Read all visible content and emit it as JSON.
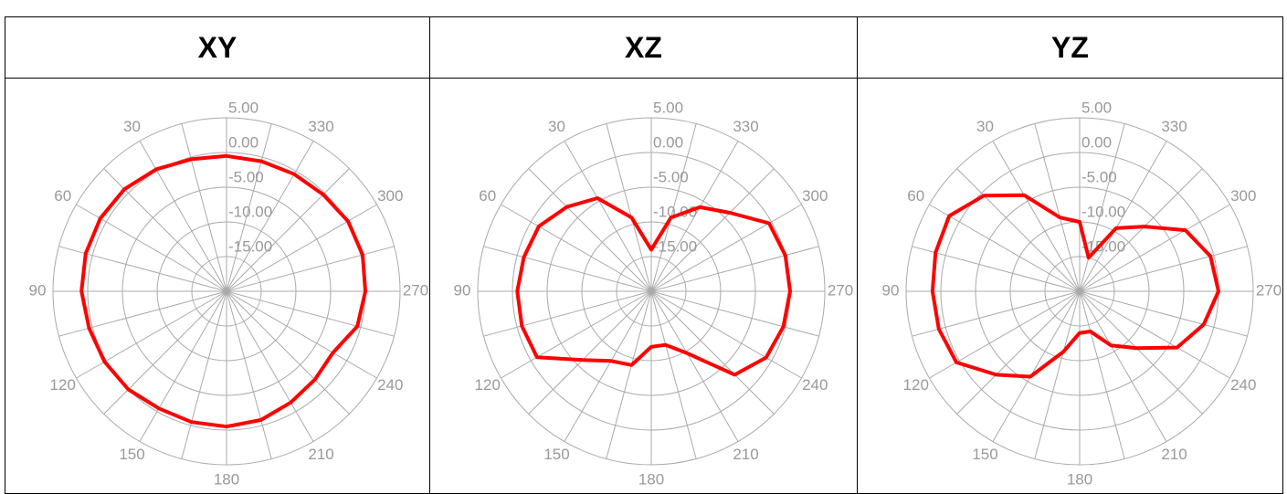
{
  "chart_data": [
    {
      "type": "polar",
      "title": "XY",
      "color": "#ff0000",
      "theta": [
        0,
        15,
        30,
        45,
        60,
        75,
        90,
        105,
        120,
        135,
        150,
        165,
        180,
        195,
        210,
        225,
        240,
        255,
        270,
        285,
        300,
        315,
        330,
        345
      ],
      "values": [
        -0.5,
        -0.3,
        0.3,
        0.8,
        1.0,
        1.0,
        0.9,
        0.5,
        0.3,
        0,
        -0.5,
        -0.5,
        -0.5,
        -0.8,
        -1.5,
        -2.0,
        -2.3,
        -0.5,
        0,
        0.3,
        0.2,
        -0.3,
        -0.5,
        -0.6
      ],
      "rlim": [
        -20,
        5
      ],
      "rticks": [
        {
          "value": 5,
          "label": "5.00"
        },
        {
          "value": 0,
          "label": "0.00"
        },
        {
          "value": -5,
          "label": "-5.00"
        },
        {
          "value": -10,
          "label": "-10.00"
        },
        {
          "value": -15,
          "label": "-15.00"
        }
      ],
      "thetaticks": [
        {
          "value": 0,
          "label": null
        },
        {
          "value": 15,
          "label": null
        },
        30,
        {
          "value": 45,
          "label": null
        },
        60,
        {
          "value": 75,
          "label": null
        },
        90,
        {
          "value": 105,
          "label": null
        },
        120,
        {
          "value": 135,
          "label": null
        },
        150,
        {
          "value": 165,
          "label": null
        },
        180,
        {
          "value": 195,
          "label": null
        },
        210,
        {
          "value": 225,
          "label": null
        },
        240,
        {
          "value": 255,
          "label": null
        },
        270,
        {
          "value": 285,
          "label": null
        },
        300,
        {
          "value": 315,
          "label": null
        },
        330,
        {
          "value": 345,
          "label": null
        }
      ]
    },
    {
      "type": "polar",
      "title": "XZ",
      "color": "#ff0000",
      "theta": [
        0,
        15,
        30,
        45,
        60,
        75,
        90,
        105,
        120,
        135,
        150,
        165,
        180,
        195,
        210,
        225,
        240,
        255,
        270,
        285,
        300,
        315,
        330,
        345
      ],
      "values": [
        -14,
        -9,
        -4.5,
        -2.8,
        -1.3,
        -1,
        -0.7,
        -0.7,
        -1,
        -6,
        -8.4,
        -9,
        -12,
        -12,
        -9.7,
        -3,
        -0.9,
        -0.3,
        0,
        0,
        -0.4,
        -4,
        -6,
        -9
      ],
      "rlim": [
        -20,
        5
      ],
      "rticks": [
        {
          "value": 5,
          "label": "5.00"
        },
        {
          "value": 0,
          "label": "0.00"
        },
        {
          "value": -5,
          "label": "-5.00"
        },
        {
          "value": -10,
          "label": "-10.00"
        },
        {
          "value": -15,
          "label": "-15.00"
        }
      ],
      "thetaticks": [
        {
          "value": 0,
          "label": null
        },
        {
          "value": 15,
          "label": null
        },
        30,
        {
          "value": 45,
          "label": null
        },
        60,
        {
          "value": 75,
          "label": null
        },
        90,
        {
          "value": 105,
          "label": null
        },
        120,
        {
          "value": 135,
          "label": null
        },
        150,
        {
          "value": 165,
          "label": null
        },
        180,
        {
          "value": 195,
          "label": null
        },
        210,
        {
          "value": 225,
          "label": null
        },
        240,
        {
          "value": 255,
          "label": null
        },
        270,
        {
          "value": 285,
          "label": null
        },
        300,
        {
          "value": 315,
          "label": null
        },
        330,
        {
          "value": 345,
          "label": null
        }
      ]
    },
    {
      "type": "polar",
      "title": "YZ",
      "color": "#ff0000",
      "theta": [
        0,
        15,
        30,
        45,
        60,
        75,
        90,
        105,
        120,
        135,
        150,
        165,
        180,
        195,
        210,
        225,
        240,
        255,
        270,
        285,
        300,
        315,
        330,
        345
      ],
      "values": [
        -10,
        -9,
        -4,
        -0.5,
        1.7,
        1.5,
        1.2,
        1.0,
        0.5,
        -3,
        -5.8,
        -11,
        -14,
        -14,
        -11,
        -8.4,
        -3.8,
        -1.5,
        0,
        -0.5,
        -2.4,
        -6.8,
        -9.5,
        -15
      ],
      "rlim": [
        -20,
        5
      ],
      "rticks": [
        {
          "value": 5,
          "label": "5.00"
        },
        {
          "value": 0,
          "label": "0.00"
        },
        {
          "value": -5,
          "label": "-5.00"
        },
        {
          "value": -10,
          "label": "-10.00"
        },
        {
          "value": -15,
          "label": "-15.00"
        }
      ],
      "thetaticks": [
        {
          "value": 0,
          "label": null
        },
        {
          "value": 15,
          "label": null
        },
        30,
        {
          "value": 45,
          "label": null
        },
        60,
        {
          "value": 75,
          "label": null
        },
        90,
        {
          "value": 105,
          "label": null
        },
        120,
        {
          "value": 135,
          "label": null
        },
        150,
        {
          "value": 165,
          "label": null
        },
        180,
        {
          "value": 195,
          "label": null
        },
        210,
        {
          "value": 225,
          "label": null
        },
        240,
        {
          "value": 255,
          "label": null
        },
        270,
        {
          "value": 285,
          "label": null
        },
        300,
        {
          "value": 315,
          "label": null
        },
        330,
        {
          "value": 345,
          "label": null
        }
      ]
    }
  ]
}
